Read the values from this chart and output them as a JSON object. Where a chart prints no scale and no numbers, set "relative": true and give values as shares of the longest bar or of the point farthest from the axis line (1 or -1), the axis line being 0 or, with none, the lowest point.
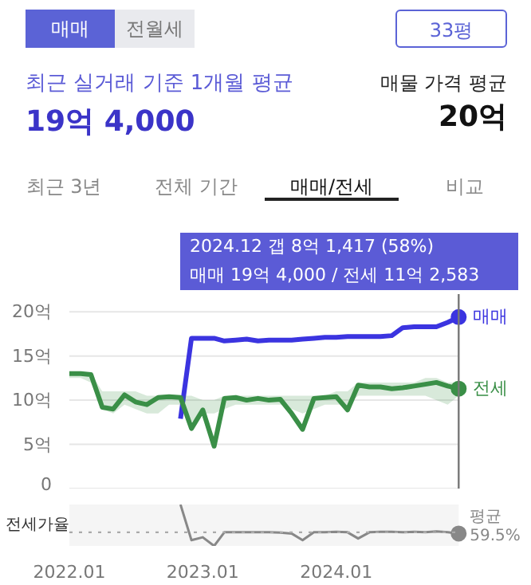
{
  "chart_data": [
    {
      "type": "line",
      "title": "최근 실거래 기준 1개월 평균",
      "subtitle": "19억 4,000",
      "annotations": [
        "매매",
        "전월세",
        "33평",
        "매물 가격 평균",
        "20억",
        "최근 3년",
        "전체 기간",
        "매매/전세",
        "비교",
        "2024.12  갭 8억 1,417 (58%)",
        "매매 19억 4,000 / 전세 11억 2,583"
      ],
      "x": [
        "2022-01",
        "2022-02",
        "2022-03",
        "2022-04",
        "2022-05",
        "2022-06",
        "2022-07",
        "2022-08",
        "2022-09",
        "2022-10",
        "2022-11",
        "2022-12",
        "2023-01",
        "2023-02",
        "2023-03",
        "2023-04",
        "2023-05",
        "2023-06",
        "2023-07",
        "2023-08",
        "2023-09",
        "2023-10",
        "2023-11",
        "2023-12",
        "2024-01",
        "2024-02",
        "2024-03",
        "2024-04",
        "2024-05",
        "2024-06",
        "2024-07",
        "2024-08",
        "2024-09",
        "2024-10",
        "2024-11",
        "2024-12"
      ],
      "series": [
        {
          "name": "매매",
          "color": "#3b34e0",
          "values": [
            null,
            null,
            null,
            null,
            null,
            null,
            null,
            null,
            null,
            null,
            7.9,
            17.0,
            17.0,
            17.0,
            16.7,
            16.8,
            16.9,
            16.7,
            16.8,
            16.8,
            16.8,
            16.9,
            17.0,
            17.1,
            17.1,
            17.2,
            17.2,
            17.2,
            17.2,
            17.3,
            18.2,
            18.3,
            18.3,
            18.3,
            18.8,
            19.4
          ]
        },
        {
          "name": "전세",
          "color": "#3a8f47",
          "values": [
            13.0,
            13.0,
            12.9,
            9.2,
            9.0,
            10.6,
            9.8,
            9.5,
            10.3,
            10.4,
            10.3,
            6.8,
            8.9,
            4.8,
            10.2,
            10.3,
            10.0,
            10.2,
            10.0,
            10.1,
            8.5,
            6.7,
            10.2,
            10.3,
            10.4,
            8.9,
            11.7,
            11.5,
            11.5,
            11.3,
            11.4,
            11.6,
            11.8,
            12.0,
            11.6,
            11.3
          ],
          "lower": [
            12.5,
            12.5,
            12.0,
            9.0,
            8.5,
            9.5,
            9.0,
            8.5,
            8.5,
            9.5,
            9.5,
            7.5,
            8.5,
            8.5,
            9.0,
            9.5,
            9.5,
            9.5,
            9.5,
            9.5,
            9.0,
            8.5,
            9.0,
            9.5,
            9.5,
            9.5,
            10.5,
            10.5,
            10.5,
            10.5,
            10.5,
            10.5,
            10.5,
            10.0,
            9.5,
            10.5
          ],
          "upper": [
            13.0,
            13.0,
            13.0,
            11.0,
            11.0,
            11.0,
            11.0,
            10.5,
            10.5,
            10.5,
            10.5,
            10.5,
            10.0,
            10.0,
            10.5,
            10.5,
            10.5,
            10.5,
            10.5,
            10.5,
            10.5,
            10.5,
            10.5,
            10.5,
            11.0,
            11.0,
            12.0,
            12.0,
            12.0,
            12.0,
            12.0,
            12.0,
            12.5,
            12.5,
            12.0,
            12.0
          ]
        }
      ],
      "xlim": [
        "2022-01",
        "2024-12"
      ],
      "ylim": [
        0,
        22
      ],
      "yticks": [
        {
          "value": 0,
          "label": "0"
        },
        {
          "value": 5,
          "label": "5억"
        },
        {
          "value": 10,
          "label": "10억"
        },
        {
          "value": 15,
          "label": "15억"
        },
        {
          "value": 20,
          "label": "20억"
        }
      ],
      "ref_lines": [
        {
          "axis": "x",
          "value": "2024-12",
          "label": null,
          "color": "#777777",
          "line_style": "solid"
        }
      ],
      "grid": "y",
      "tick_labels": "y"
    },
    {
      "type": "line",
      "relative": true,
      "ylabel": "전세가율",
      "x": [
        "2022-11",
        "2022-12",
        "2023-01",
        "2023-02",
        "2023-03",
        "2023-04",
        "2023-05",
        "2023-06",
        "2023-07",
        "2023-08",
        "2023-09",
        "2023-10",
        "2023-11",
        "2023-12",
        "2024-01",
        "2024-02",
        "2024-03",
        "2024-04",
        "2024-05",
        "2024-06",
        "2024-07",
        "2024-08",
        "2024-09",
        "2024-10",
        "2024-11",
        "2024-12"
      ],
      "series": [
        {
          "color": "#888888",
          "values": [
            1.0,
            0.14,
            0.21,
            0.0,
            0.33,
            0.33,
            0.33,
            0.33,
            0.33,
            0.32,
            0.3,
            0.14,
            0.33,
            0.33,
            0.34,
            0.33,
            0.18,
            0.33,
            0.34,
            0.34,
            0.33,
            0.34,
            0.33,
            0.35,
            0.33,
            0.3
          ]
        }
      ],
      "xlim": [
        "2022-01",
        "2024-12"
      ],
      "xticks": [
        {
          "value": "2022-01",
          "label": "2022.01"
        },
        {
          "value": "2023-01",
          "label": "2023.01"
        },
        {
          "value": "2024-01",
          "label": "2024.01"
        }
      ],
      "ref_lines": [
        {
          "axis": "y",
          "value": 0.33,
          "label": "평균 59.5%",
          "color": "#aaaaaa",
          "line_style": "dotted"
        }
      ],
      "grid": false
    }
  ]
}
